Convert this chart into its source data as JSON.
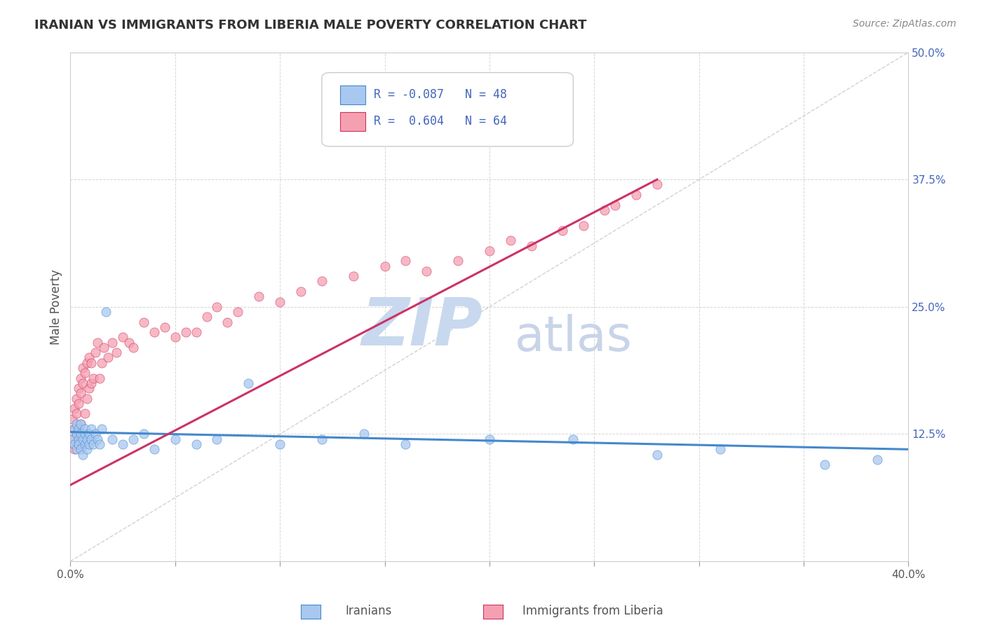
{
  "title": "IRANIAN VS IMMIGRANTS FROM LIBERIA MALE POVERTY CORRELATION CHART",
  "source": "Source: ZipAtlas.com",
  "xlabel_iranians": "Iranians",
  "xlabel_liberia": "Immigrants from Liberia",
  "ylabel": "Male Poverty",
  "xmin": 0.0,
  "xmax": 0.4,
  "ymin": 0.0,
  "ymax": 0.5,
  "yticks": [
    0.0,
    0.125,
    0.25,
    0.375,
    0.5
  ],
  "ytick_labels": [
    "",
    "12.5%",
    "25.0%",
    "37.5%",
    "50.0%"
  ],
  "xticks": [
    0.0,
    0.05,
    0.1,
    0.15,
    0.2,
    0.25,
    0.3,
    0.35,
    0.4
  ],
  "xtick_labels": [
    "0.0%",
    "",
    "",
    "",
    "",
    "",
    "",
    "",
    "40.0%"
  ],
  "R_iranian": -0.087,
  "N_iranian": 48,
  "R_liberia": 0.604,
  "N_liberia": 64,
  "color_iranian": "#a8c8f0",
  "color_liberia": "#f5a0b0",
  "line_color_iranian": "#4488cc",
  "line_color_liberia": "#cc3366",
  "watermark_zip": "ZIP",
  "watermark_atlas": "atlas",
  "watermark_color_zip": "#c8d8ee",
  "watermark_color_atlas": "#c8d4e8",
  "background_color": "#ffffff",
  "grid_color": "#cccccc",
  "title_color": "#333333",
  "source_color": "#888888",
  "legend_r_color": "#4466bb",
  "diag_color": "#cccccc",
  "scatter_iranian_x": [
    0.001,
    0.002,
    0.002,
    0.003,
    0.003,
    0.003,
    0.004,
    0.004,
    0.004,
    0.005,
    0.005,
    0.005,
    0.006,
    0.006,
    0.007,
    0.007,
    0.007,
    0.008,
    0.008,
    0.009,
    0.009,
    0.01,
    0.01,
    0.011,
    0.012,
    0.013,
    0.014,
    0.015,
    0.017,
    0.02,
    0.025,
    0.03,
    0.035,
    0.04,
    0.05,
    0.06,
    0.07,
    0.085,
    0.1,
    0.12,
    0.14,
    0.16,
    0.2,
    0.24,
    0.28,
    0.31,
    0.36,
    0.385
  ],
  "scatter_iranian_y": [
    0.12,
    0.13,
    0.115,
    0.125,
    0.135,
    0.11,
    0.12,
    0.13,
    0.115,
    0.125,
    0.135,
    0.11,
    0.12,
    0.105,
    0.125,
    0.115,
    0.13,
    0.12,
    0.11,
    0.125,
    0.115,
    0.12,
    0.13,
    0.115,
    0.125,
    0.12,
    0.115,
    0.13,
    0.245,
    0.12,
    0.115,
    0.12,
    0.125,
    0.11,
    0.12,
    0.115,
    0.12,
    0.175,
    0.115,
    0.12,
    0.125,
    0.115,
    0.12,
    0.12,
    0.105,
    0.11,
    0.095,
    0.1
  ],
  "scatter_liberia_x": [
    0.001,
    0.001,
    0.002,
    0.002,
    0.002,
    0.003,
    0.003,
    0.003,
    0.004,
    0.004,
    0.004,
    0.005,
    0.005,
    0.005,
    0.006,
    0.006,
    0.007,
    0.007,
    0.008,
    0.008,
    0.009,
    0.009,
    0.01,
    0.01,
    0.011,
    0.012,
    0.013,
    0.014,
    0.015,
    0.016,
    0.018,
    0.02,
    0.022,
    0.025,
    0.028,
    0.03,
    0.035,
    0.04,
    0.045,
    0.05,
    0.055,
    0.06,
    0.065,
    0.07,
    0.075,
    0.08,
    0.09,
    0.1,
    0.11,
    0.12,
    0.135,
    0.15,
    0.16,
    0.17,
    0.185,
    0.2,
    0.21,
    0.22,
    0.235,
    0.245,
    0.255,
    0.26,
    0.27,
    0.28
  ],
  "scatter_liberia_y": [
    0.12,
    0.14,
    0.13,
    0.15,
    0.11,
    0.145,
    0.16,
    0.125,
    0.155,
    0.17,
    0.115,
    0.165,
    0.18,
    0.135,
    0.175,
    0.19,
    0.185,
    0.145,
    0.195,
    0.16,
    0.2,
    0.17,
    0.175,
    0.195,
    0.18,
    0.205,
    0.215,
    0.18,
    0.195,
    0.21,
    0.2,
    0.215,
    0.205,
    0.22,
    0.215,
    0.21,
    0.235,
    0.225,
    0.23,
    0.22,
    0.225,
    0.225,
    0.24,
    0.25,
    0.235,
    0.245,
    0.26,
    0.255,
    0.265,
    0.275,
    0.28,
    0.29,
    0.295,
    0.285,
    0.295,
    0.305,
    0.315,
    0.31,
    0.325,
    0.33,
    0.345,
    0.35,
    0.36,
    0.37
  ],
  "liberia_line_x0": 0.0,
  "liberia_line_y0": 0.075,
  "liberia_line_x1": 0.28,
  "liberia_line_y1": 0.375,
  "iranian_line_x0": 0.0,
  "iranian_line_y0": 0.127,
  "iranian_line_x1": 0.4,
  "iranian_line_y1": 0.11
}
